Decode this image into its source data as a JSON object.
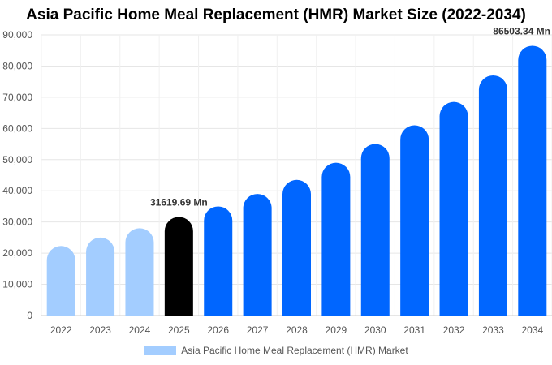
{
  "chart_data": {
    "type": "bar",
    "title": "Asia Pacific Home Meal Replacement (HMR) Market Size (2022-2034)",
    "categories": [
      "2022",
      "2023",
      "2024",
      "2025",
      "2026",
      "2027",
      "2028",
      "2029",
      "2030",
      "2031",
      "2032",
      "2033",
      "2034"
    ],
    "series": [
      {
        "name": "Asia Pacific Home Meal Replacement (HMR) Market",
        "values": [
          22300,
          25000,
          28000,
          31619.69,
          35000,
          39000,
          43500,
          49000,
          55000,
          61000,
          68500,
          77000,
          86503.34
        ]
      }
    ],
    "bar_colors": [
      "#a3cdff",
      "#a3cdff",
      "#a3cdff",
      "#000000",
      "#0066ff",
      "#0066ff",
      "#0066ff",
      "#0066ff",
      "#0066ff",
      "#0066ff",
      "#0066ff",
      "#0066ff",
      "#0066ff"
    ],
    "legend_color": "#a3cdff",
    "data_labels": [
      {
        "category": "2025",
        "text": "31619.69 Mn"
      },
      {
        "category": "2034",
        "text": "86503.34 Mn"
      }
    ],
    "yticks": [
      "0",
      "10,000",
      "20,000",
      "30,000",
      "40,000",
      "50,000",
      "60,000",
      "70,000",
      "80,000",
      "90,000"
    ],
    "ylim": [
      0,
      90000
    ],
    "grid": "horizontal",
    "legend_position": "bottom-center"
  }
}
